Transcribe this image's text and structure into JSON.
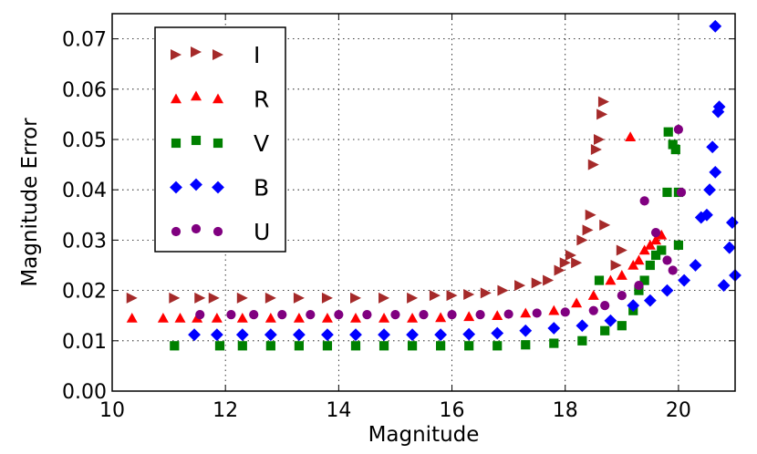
{
  "chart_data": {
    "type": "scatter",
    "title": "",
    "xlabel": "Magnitude",
    "ylabel": "Magnitude Error",
    "xlim": [
      10,
      21
    ],
    "ylim": [
      0.0,
      0.075
    ],
    "xticks": [
      "10",
      "12",
      "14",
      "16",
      "18",
      "20"
    ],
    "yticks": [
      "0.00",
      "0.01",
      "0.02",
      "0.03",
      "0.04",
      "0.05",
      "0.06",
      "0.07"
    ],
    "grid": true,
    "legend_position": "top-left",
    "series": [
      {
        "name": "I",
        "color": "#a52a2a",
        "marker": "triangle-right",
        "points": [
          [
            10.35,
            0.0185
          ],
          [
            11.1,
            0.0185
          ],
          [
            11.55,
            0.0185
          ],
          [
            11.8,
            0.0185
          ],
          [
            12.3,
            0.0185
          ],
          [
            12.8,
            0.0185
          ],
          [
            13.3,
            0.0185
          ],
          [
            13.8,
            0.0185
          ],
          [
            14.3,
            0.0185
          ],
          [
            14.8,
            0.0185
          ],
          [
            15.3,
            0.0185
          ],
          [
            15.7,
            0.019
          ],
          [
            16.0,
            0.019
          ],
          [
            16.3,
            0.0192
          ],
          [
            16.6,
            0.0195
          ],
          [
            16.9,
            0.02
          ],
          [
            17.2,
            0.021
          ],
          [
            17.5,
            0.0215
          ],
          [
            17.7,
            0.022
          ],
          [
            17.9,
            0.024
          ],
          [
            18.0,
            0.0255
          ],
          [
            18.1,
            0.027
          ],
          [
            18.2,
            0.0255
          ],
          [
            18.3,
            0.03
          ],
          [
            18.4,
            0.032
          ],
          [
            18.45,
            0.035
          ],
          [
            18.5,
            0.045
          ],
          [
            18.55,
            0.048
          ],
          [
            18.6,
            0.05
          ],
          [
            18.65,
            0.055
          ],
          [
            18.68,
            0.0575
          ],
          [
            18.7,
            0.033
          ],
          [
            18.9,
            0.025
          ],
          [
            19.0,
            0.028
          ]
        ]
      },
      {
        "name": "R",
        "color": "#ff0000",
        "marker": "triangle-up",
        "points": [
          [
            10.35,
            0.0145
          ],
          [
            10.9,
            0.0145
          ],
          [
            11.2,
            0.0145
          ],
          [
            11.5,
            0.0145
          ],
          [
            11.85,
            0.0145
          ],
          [
            12.3,
            0.0145
          ],
          [
            12.8,
            0.0145
          ],
          [
            13.3,
            0.0145
          ],
          [
            13.8,
            0.0145
          ],
          [
            14.3,
            0.0145
          ],
          [
            14.8,
            0.0145
          ],
          [
            15.3,
            0.0145
          ],
          [
            15.8,
            0.0146
          ],
          [
            16.3,
            0.0148
          ],
          [
            16.8,
            0.015
          ],
          [
            17.3,
            0.0155
          ],
          [
            17.8,
            0.016
          ],
          [
            18.2,
            0.0175
          ],
          [
            18.5,
            0.019
          ],
          [
            18.8,
            0.022
          ],
          [
            19.0,
            0.023
          ],
          [
            19.15,
            0.0505
          ],
          [
            19.2,
            0.025
          ],
          [
            19.3,
            0.026
          ],
          [
            19.4,
            0.028
          ],
          [
            19.5,
            0.029
          ],
          [
            19.6,
            0.03
          ],
          [
            19.7,
            0.031
          ]
        ]
      },
      {
        "name": "V",
        "color": "#008000",
        "marker": "square",
        "points": [
          [
            11.1,
            0.009
          ],
          [
            11.9,
            0.009
          ],
          [
            12.3,
            0.009
          ],
          [
            12.8,
            0.009
          ],
          [
            13.3,
            0.009
          ],
          [
            13.8,
            0.009
          ],
          [
            14.3,
            0.009
          ],
          [
            14.8,
            0.009
          ],
          [
            15.3,
            0.009
          ],
          [
            15.8,
            0.009
          ],
          [
            16.3,
            0.009
          ],
          [
            16.8,
            0.009
          ],
          [
            17.3,
            0.0092
          ],
          [
            17.8,
            0.0095
          ],
          [
            18.3,
            0.01
          ],
          [
            18.6,
            0.022
          ],
          [
            18.7,
            0.012
          ],
          [
            19.0,
            0.013
          ],
          [
            19.2,
            0.016
          ],
          [
            19.3,
            0.02
          ],
          [
            19.4,
            0.022
          ],
          [
            19.5,
            0.025
          ],
          [
            19.6,
            0.027
          ],
          [
            19.7,
            0.028
          ],
          [
            19.8,
            0.0395
          ],
          [
            19.82,
            0.0515
          ],
          [
            19.9,
            0.049
          ],
          [
            19.95,
            0.048
          ],
          [
            20.0,
            0.0395
          ],
          [
            20.0,
            0.029
          ]
        ]
      },
      {
        "name": "B",
        "color": "#0000ff",
        "marker": "diamond",
        "points": [
          [
            11.45,
            0.0112
          ],
          [
            11.85,
            0.0112
          ],
          [
            12.3,
            0.0112
          ],
          [
            12.8,
            0.0112
          ],
          [
            13.3,
            0.0112
          ],
          [
            13.8,
            0.0112
          ],
          [
            14.3,
            0.0112
          ],
          [
            14.8,
            0.0112
          ],
          [
            15.3,
            0.0112
          ],
          [
            15.8,
            0.0112
          ],
          [
            16.3,
            0.0113
          ],
          [
            16.8,
            0.0115
          ],
          [
            17.3,
            0.012
          ],
          [
            17.8,
            0.0125
          ],
          [
            18.3,
            0.013
          ],
          [
            18.8,
            0.014
          ],
          [
            19.2,
            0.017
          ],
          [
            19.5,
            0.018
          ],
          [
            19.8,
            0.02
          ],
          [
            20.1,
            0.022
          ],
          [
            20.3,
            0.025
          ],
          [
            20.4,
            0.0345
          ],
          [
            20.5,
            0.035
          ],
          [
            20.55,
            0.04
          ],
          [
            20.6,
            0.0485
          ],
          [
            20.65,
            0.0435
          ],
          [
            20.7,
            0.0555
          ],
          [
            20.72,
            0.0565
          ],
          [
            20.65,
            0.0725
          ],
          [
            20.8,
            0.021
          ],
          [
            20.9,
            0.0285
          ],
          [
            20.95,
            0.0335
          ],
          [
            21.0,
            0.023
          ]
        ]
      },
      {
        "name": "U",
        "color": "#800080",
        "marker": "circle",
        "points": [
          [
            11.55,
            0.0152
          ],
          [
            12.1,
            0.0152
          ],
          [
            12.5,
            0.0152
          ],
          [
            13.0,
            0.0152
          ],
          [
            13.5,
            0.0152
          ],
          [
            14.0,
            0.0152
          ],
          [
            14.5,
            0.0152
          ],
          [
            15.0,
            0.0152
          ],
          [
            15.5,
            0.0152
          ],
          [
            16.0,
            0.0152
          ],
          [
            16.5,
            0.0152
          ],
          [
            17.0,
            0.0153
          ],
          [
            17.5,
            0.0155
          ],
          [
            18.0,
            0.0157
          ],
          [
            18.5,
            0.016
          ],
          [
            18.7,
            0.017
          ],
          [
            19.0,
            0.019
          ],
          [
            19.3,
            0.021
          ],
          [
            19.4,
            0.0378
          ],
          [
            19.6,
            0.0315
          ],
          [
            19.8,
            0.026
          ],
          [
            19.9,
            0.024
          ],
          [
            20.0,
            0.052
          ],
          [
            20.05,
            0.0395
          ]
        ]
      }
    ]
  }
}
